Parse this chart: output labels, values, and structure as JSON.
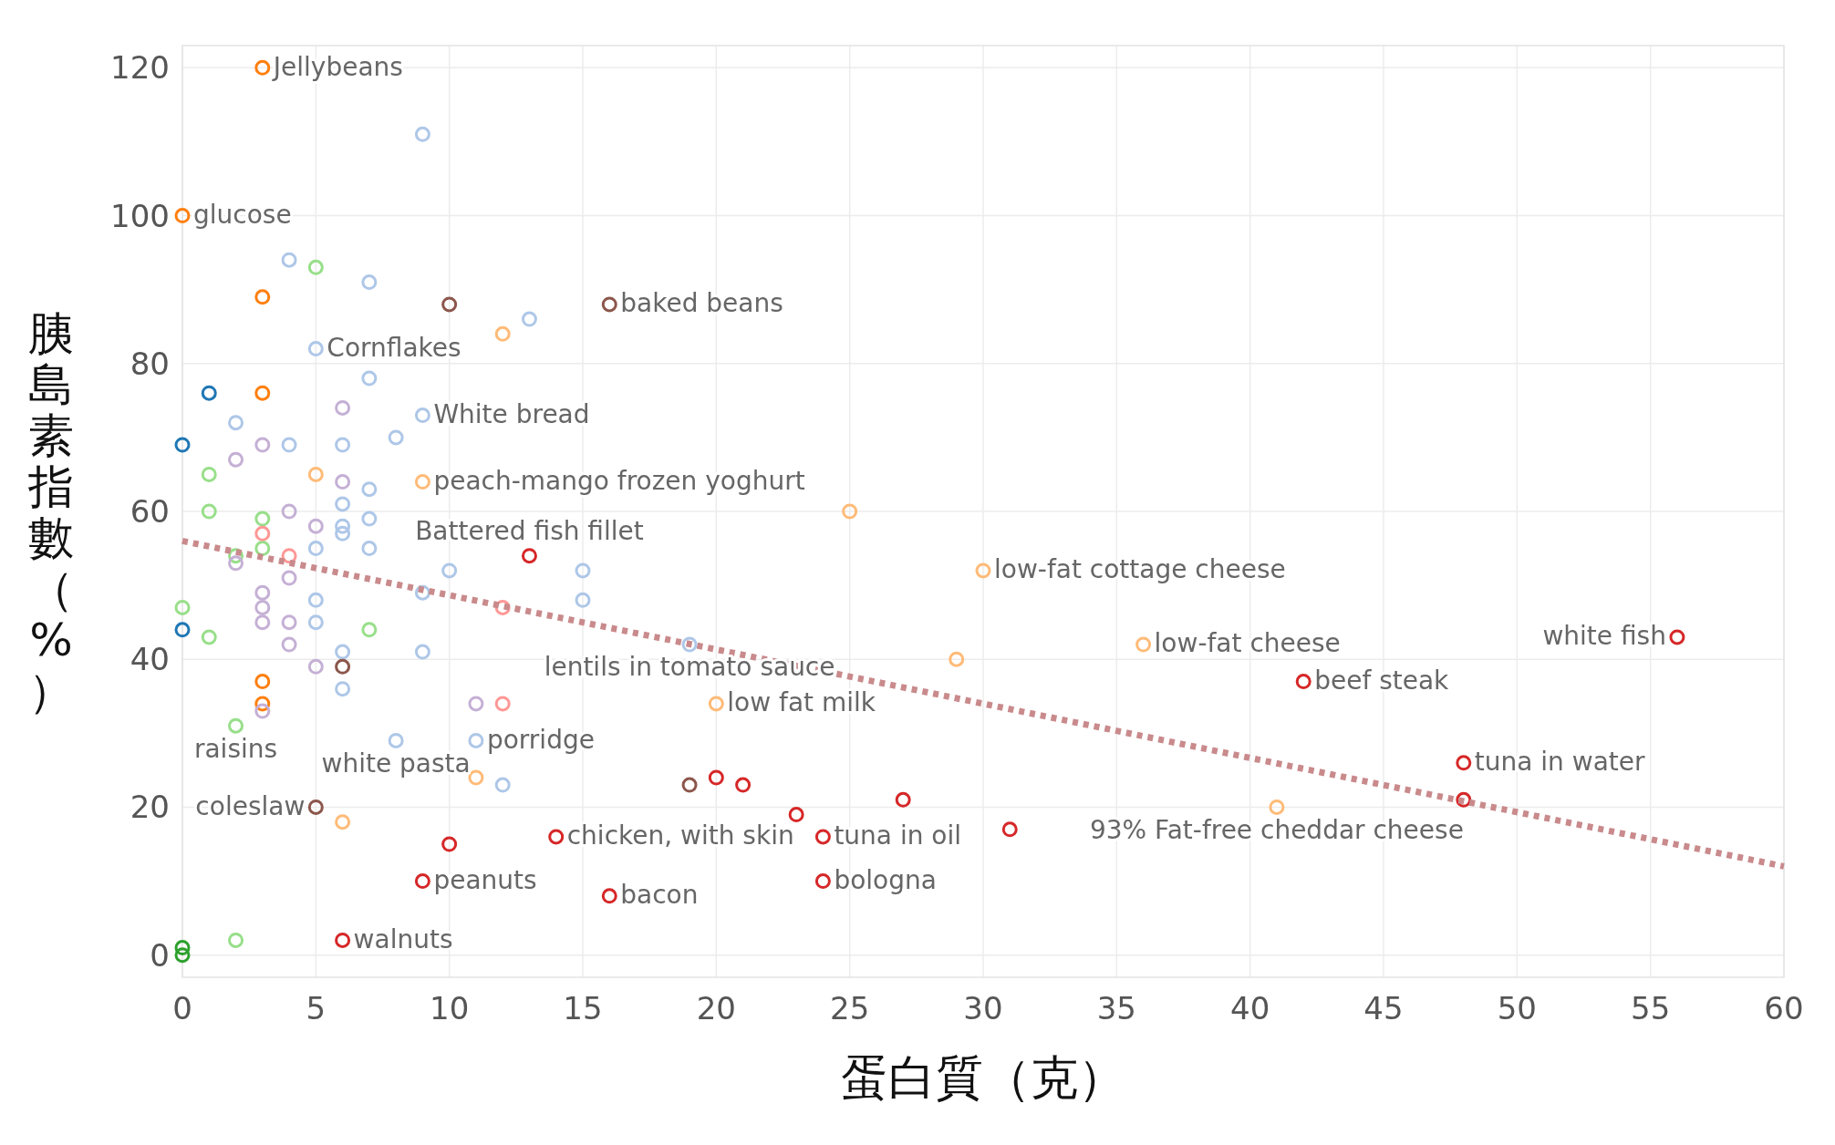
{
  "chart_data": {
    "type": "scatter",
    "xlabel": "蛋白質（克）",
    "ylabel": "胰島素指數（%）",
    "xlim": [
      0,
      60
    ],
    "ylim": [
      -3,
      123
    ],
    "xticks": [
      0,
      5,
      10,
      15,
      20,
      25,
      30,
      35,
      40,
      45,
      50,
      55,
      60
    ],
    "yticks": [
      0,
      20,
      40,
      60,
      80,
      100,
      120
    ],
    "grid": true,
    "marker": "circle",
    "series": [
      {
        "color": "#ff7f0e",
        "x": [
          3,
          0,
          3,
          3,
          3,
          3
        ],
        "values": [
          120,
          100,
          89,
          76,
          37,
          34
        ]
      },
      {
        "color": "#ffbb78",
        "x": [
          12,
          5,
          9,
          25,
          30,
          29,
          36,
          20,
          11,
          6,
          41
        ],
        "values": [
          84,
          65,
          64,
          60,
          52,
          40,
          42,
          34,
          24,
          18,
          20
        ]
      },
      {
        "color": "#1f77b4",
        "x": [
          1,
          0,
          0
        ],
        "values": [
          76,
          69,
          44
        ]
      },
      {
        "color": "#aec7e8",
        "x": [
          9,
          4,
          7,
          13,
          5,
          7,
          2,
          9,
          8,
          4,
          6,
          7,
          6,
          7,
          6,
          6,
          5,
          7,
          10,
          15,
          9,
          5,
          15,
          5,
          19,
          6,
          9,
          6,
          8,
          11,
          12
        ],
        "values": [
          111,
          94,
          91,
          86,
          82,
          78,
          72,
          73,
          70,
          69,
          69,
          63,
          61,
          59,
          58,
          57,
          55,
          55,
          52,
          52,
          49,
          48,
          48,
          45,
          42,
          41,
          41,
          36,
          29,
          29,
          23
        ]
      },
      {
        "color": "#98df8a",
        "x": [
          5,
          1,
          1,
          3,
          3,
          2,
          0,
          1,
          7,
          2,
          2
        ],
        "values": [
          93,
          65,
          60,
          59,
          55,
          54,
          47,
          43,
          44,
          31,
          2
        ]
      },
      {
        "color": "#2ca02c",
        "x": [
          0,
          0
        ],
        "values": [
          1,
          0
        ]
      },
      {
        "color": "#c5b0d5",
        "x": [
          6,
          3,
          2,
          4,
          6,
          5,
          2,
          4,
          3,
          3,
          3,
          4,
          4,
          5,
          11,
          3
        ],
        "values": [
          74,
          69,
          67,
          60,
          64,
          58,
          53,
          51,
          49,
          47,
          45,
          45,
          42,
          39,
          34,
          33
        ]
      },
      {
        "color": "#8c564b",
        "x": [
          10,
          16,
          6,
          5,
          19
        ],
        "values": [
          88,
          88,
          39,
          20,
          23
        ]
      },
      {
        "color": "#d62728",
        "x": [
          13,
          20,
          21,
          23,
          27,
          24,
          31,
          14,
          10,
          9,
          16,
          24,
          6,
          42,
          48,
          48,
          56
        ],
        "values": [
          54,
          24,
          23,
          19,
          21,
          16,
          17,
          16,
          15,
          10,
          8,
          10,
          2,
          37,
          26,
          21,
          43
        ]
      },
      {
        "color": "#ff9896",
        "x": [
          3,
          4,
          12,
          12
        ],
        "values": [
          57,
          54,
          47,
          34
        ]
      },
      {
        "type": "line",
        "marker": "none",
        "line_style": "dotted",
        "color": "#c98a8c",
        "x": [
          0,
          60
        ],
        "values": [
          56,
          12
        ]
      }
    ],
    "annotations": [
      {
        "text": "Jellybeans",
        "x": 3,
        "y": 120
      },
      {
        "text": "glucose",
        "x": 0,
        "y": 100
      },
      {
        "text": "Cornflakes",
        "x": 5,
        "y": 82
      },
      {
        "text": "baked beans",
        "x": 16,
        "y": 88
      },
      {
        "text": "White bread",
        "x": 9,
        "y": 73
      },
      {
        "text": "peach-mango frozen yoghurt",
        "x": 9,
        "y": 64
      },
      {
        "text": "Battered fish fillet",
        "x": 13,
        "y": 54
      },
      {
        "text": "low-fat cottage cheese",
        "x": 30,
        "y": 52
      },
      {
        "text": "lentils in tomato sauce",
        "x": 19,
        "y": 42
      },
      {
        "text": "low-fat cheese",
        "x": 36,
        "y": 42
      },
      {
        "text": "white fish",
        "x": 56,
        "y": 43
      },
      {
        "text": "beef steak",
        "x": 42,
        "y": 37
      },
      {
        "text": "low fat milk",
        "x": 20,
        "y": 34
      },
      {
        "text": "porridge",
        "x": 11,
        "y": 29
      },
      {
        "text": "raisins",
        "x": 2,
        "y": 31
      },
      {
        "text": "white pasta",
        "x": 8,
        "y": 29
      },
      {
        "text": "coleslaw",
        "x": 5,
        "y": 20
      },
      {
        "text": "tuna in water",
        "x": 48,
        "y": 26
      },
      {
        "text": "chicken, with skin",
        "x": 14,
        "y": 16
      },
      {
        "text": "tuna in oil",
        "x": 24,
        "y": 16
      },
      {
        "text": "93% Fat-free cheddar cheese",
        "x": 41,
        "y": 20
      },
      {
        "text": "peanuts",
        "x": 9,
        "y": 10
      },
      {
        "text": "bacon",
        "x": 16,
        "y": 8
      },
      {
        "text": "bologna",
        "x": 24,
        "y": 10
      },
      {
        "text": "walnuts",
        "x": 6,
        "y": 2
      }
    ]
  }
}
